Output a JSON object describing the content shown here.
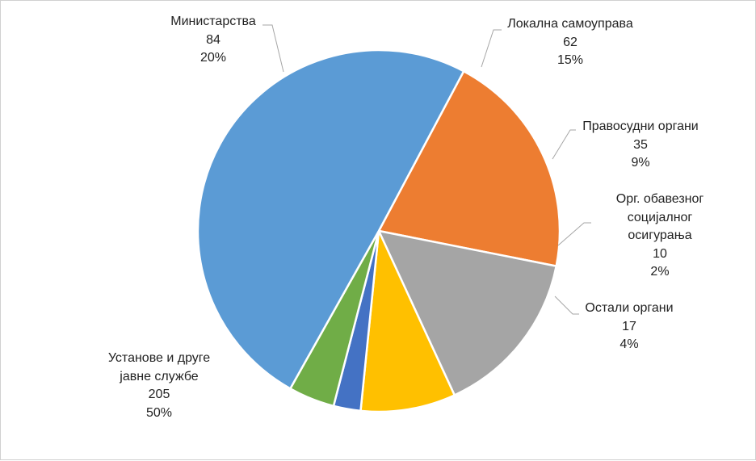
{
  "chart_data": {
    "type": "pie",
    "title": "",
    "slices": [
      {
        "label_lines": [
          "Министарства"
        ],
        "value": 84,
        "percent": "20%",
        "color": "#ED7D31"
      },
      {
        "label_lines": [
          "Локална самоуправа"
        ],
        "value": 62,
        "percent": "15%",
        "color": "#A5A5A5"
      },
      {
        "label_lines": [
          "Правосудни органи"
        ],
        "value": 35,
        "percent": "9%",
        "color": "#FFC000"
      },
      {
        "label_lines": [
          "Орг. обавезног",
          "социјалног",
          "осигурања"
        ],
        "value": 10,
        "percent": "2%",
        "color": "#4472C4"
      },
      {
        "label_lines": [
          "Остали органи"
        ],
        "value": 17,
        "percent": "4%",
        "color": "#70AD47"
      },
      {
        "label_lines": [
          "Установе и друге",
          "јавне службе"
        ],
        "value": 205,
        "percent": "50%",
        "color": "#5B9BD5"
      }
    ],
    "leader_line_color": "#A6A6A6",
    "legend": "none"
  }
}
